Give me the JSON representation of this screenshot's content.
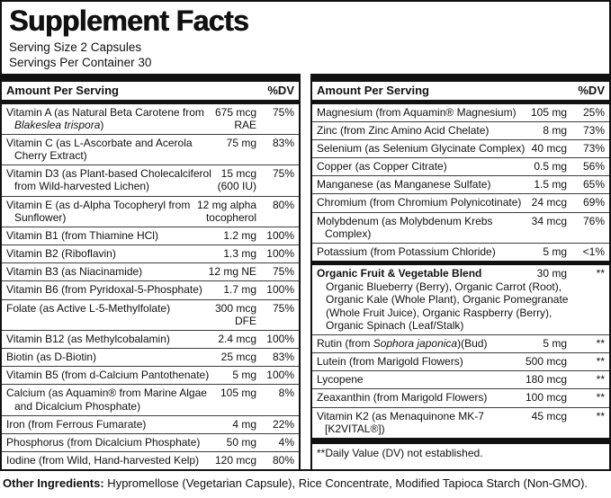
{
  "title": "Supplement Facts",
  "serving": {
    "size": "Serving Size 2 Capsules",
    "per_container": "Servings Per Container 30"
  },
  "colors": {
    "ink": "#111111",
    "background": "#ffffff"
  },
  "columns": [
    {
      "header": {
        "label": "Amount Per Serving",
        "dv": "%DV"
      },
      "rows": [
        {
          "name": "Vitamin A (as Natural Beta Carotene from Blakeslea trispora)",
          "italic": "Blakeslea trispora",
          "amount": "675 mcg\nRAE",
          "dv": "75%"
        },
        {
          "name": "Vitamin C (as L-Ascorbate and Acerola Cherry Extract)",
          "amount": "75 mg",
          "dv": "83%"
        },
        {
          "name": "Vitamin D3 (as Plant-based Cholecalciferol from Wild-harvested Lichen)",
          "amount": "15 mcg\n(600 IU)",
          "dv": "75%"
        },
        {
          "name": "Vitamin E (as d-Alpha Tocopheryl from Sunflower)",
          "amount": "12 mg alpha\ntocopherol",
          "dv": "80%"
        },
        {
          "name": "Vitamin B1 (from Thiamine HCl)",
          "amount": "1.2 mg",
          "dv": "100%"
        },
        {
          "name": "Vitamin B2 (Riboflavin)",
          "amount": "1.3 mg",
          "dv": "100%"
        },
        {
          "name": "Vitamin B3 (as Niacinamide)",
          "amount": "12 mg NE",
          "dv": "75%"
        },
        {
          "name": "Vitamin B6 (from Pyridoxal-5-Phosphate)",
          "amount": "1.7 mg",
          "dv": "100%"
        },
        {
          "name": "Folate (as Active L-5-Methylfolate)",
          "amount": "300 mcg\nDFE",
          "dv": "75%"
        },
        {
          "name": "Vitamin B12 (as Methylcobalamin)",
          "amount": "2.4 mcg",
          "dv": "100%"
        },
        {
          "name": "Biotin (as D-Biotin)",
          "amount": "25 mcg",
          "dv": "83%"
        },
        {
          "name": "Vitamin B5 (from d-Calcium Pantothenate)",
          "amount": "5 mg",
          "dv": "100%"
        },
        {
          "name": "Calcium (as Aquamin® from Marine Algae and Dicalcium Phosphate)",
          "amount": "105 mg",
          "dv": "8%"
        },
        {
          "name": "Iron (from Ferrous Fumarate)",
          "amount": "4 mg",
          "dv": "22%"
        },
        {
          "name": "Phosphorus (from Dicalcium Phosphate)",
          "amount": "50 mg",
          "dv": "4%"
        },
        {
          "name": "Iodine (from Wild, Hand-harvested Kelp)",
          "amount": "120 mcg",
          "dv": "80%"
        }
      ]
    },
    {
      "header": {
        "label": "Amount Per Serving",
        "dv": "%DV"
      },
      "rows": [
        {
          "name": "Magnesium (from Aquamin® Magnesium)",
          "amount": "105 mg",
          "dv": "25%"
        },
        {
          "name": "Zinc (from Zinc Amino Acid Chelate)",
          "amount": "8 mg",
          "dv": "73%"
        },
        {
          "name": "Selenium (as Selenium Glycinate Complex)",
          "amount": "40 mcg",
          "dv": "73%"
        },
        {
          "name": "Copper (as Copper Citrate)",
          "amount": "0.5 mg",
          "dv": "56%"
        },
        {
          "name": "Manganese (as Manganese Sulfate)",
          "amount": "1.5 mg",
          "dv": "65%"
        },
        {
          "name": "Chromium (from Chromium Polynicotinate)",
          "amount": "24 mcg",
          "dv": "69%"
        },
        {
          "name": "Molybdenum (as Molybdenum Krebs Complex)",
          "amount": "34 mcg",
          "dv": "76%"
        },
        {
          "name": "Potassium (from Potassium Chloride)",
          "amount": "5 mg",
          "dv": "<1%"
        },
        {
          "name": "Organic Fruit & Vegetable Blend",
          "bold": true,
          "thick_top": true,
          "amount": "30 mg",
          "dv": "**",
          "sub": "Organic Blueberry (Berry), Organic Carrot (Root), Organic Kale (Whole Plant), Organic Pomegranate (Whole Fruit Juice), Organic Raspberry (Berry), Organic Spinach (Leaf/Stalk)"
        },
        {
          "name": "Rutin (from Sophora japonica)(Bud)",
          "italic": "Sophora japonica",
          "amount": "5 mg",
          "dv": "**"
        },
        {
          "name": "Lutein (from Marigold Flowers)",
          "amount": "500 mcg",
          "dv": "**"
        },
        {
          "name": "Lycopene",
          "amount": "180 mcg",
          "dv": "**"
        },
        {
          "name": "Zeaxanthin (from Marigold Flowers)",
          "amount": "100 mcg",
          "dv": "**"
        },
        {
          "name": "Vitamin K2 (as Menaquinone MK-7 [K2VITAL®])",
          "amount": "45 mcg",
          "dv": "**"
        }
      ],
      "footnote": "**Daily Value (DV) not established."
    }
  ],
  "footer": {
    "label": "Other Ingredients:",
    "text": " Hypromellose (Vegetarian Capsule), Rice Concentrate, Modified Tapioca Starch (Non-GMO)."
  }
}
